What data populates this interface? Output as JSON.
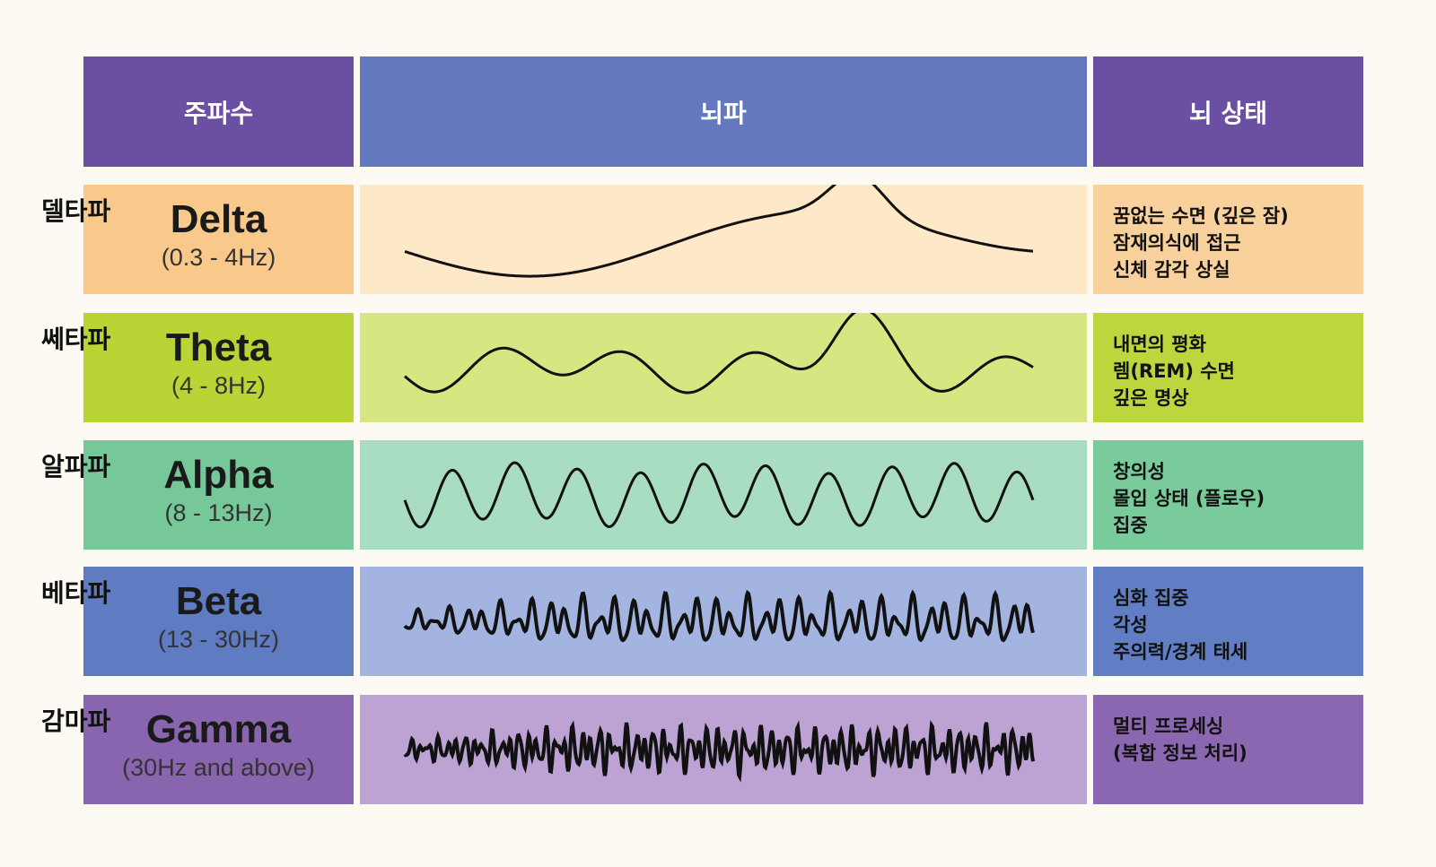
{
  "header": {
    "frequency": "주파수",
    "brainwave": "뇌파",
    "brain_state": "뇌 상태"
  },
  "rows": [
    {
      "korean_name": "델타파",
      "name": "Delta",
      "range": "(0.3 - 4Hz)",
      "states": [
        "꿈없는 수면 (깊은 잠)",
        "잠재의식에 접근",
        "신체 감각 상실"
      ]
    },
    {
      "korean_name": "쎄타파",
      "name": "Theta",
      "range": "(4 - 8Hz)",
      "states": [
        "내면의 평화",
        "렘(REM) 수면",
        "깊은 명상"
      ]
    },
    {
      "korean_name": "알파파",
      "name": "Alpha",
      "range": "(8 - 13Hz)",
      "states": [
        "창의성",
        "몰입 상태 (플로우)",
        "집중"
      ]
    },
    {
      "korean_name": "베타파",
      "name": "Beta",
      "range": "(13 - 30Hz)",
      "states": [
        "심화 집중",
        "각성",
        "주의력/경계 태세"
      ]
    },
    {
      "korean_name": "감마파",
      "name": "Gamma",
      "range": "(30Hz and above)",
      "states": [
        "멀티 프로세싱",
        "(복합 정보 처리)"
      ]
    }
  ]
}
